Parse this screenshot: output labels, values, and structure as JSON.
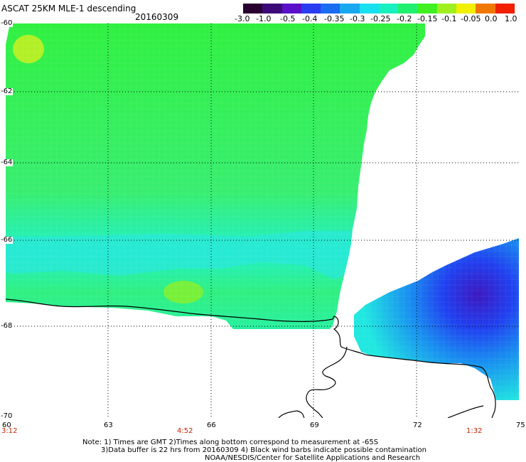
{
  "title": "ASCAT 25KM MLE-1 descending",
  "date": "20160309",
  "colorbar": {
    "labels": [
      "-3.0",
      "-1.0",
      "-0.5",
      "-0.4",
      "-0.35",
      "-0.3",
      "-0.25",
      "-0.2",
      "-0.15",
      "-0.1",
      "-0.05",
      "0.0",
      "1.0"
    ],
    "colors": [
      "#2a0030",
      "#3c0a78",
      "#5a10c8",
      "#2a3cf0",
      "#1a6cf0",
      "#18a8f0",
      "#18e0f0",
      "#18f0c0",
      "#20f070",
      "#40f020",
      "#a0f020",
      "#f0f000",
      "#f07800",
      "#f02000"
    ]
  },
  "lat_labels": [
    "-60",
    "-62",
    "-64",
    "-66",
    "-68",
    "-70"
  ],
  "lon_labels": [
    "60",
    "63",
    "66",
    "69",
    "72",
    "75"
  ],
  "time_labels": [
    "3:12",
    "4:52",
    "1:32"
  ],
  "notes": [
    "Note: 1) Times are GMT 2)Times along bottom correspond to measurement at -65S",
    "3)Data buffer is 22 hrs from 20160309 4) Black wind barbs indicate possible contamination",
    "NOAA/NESDIS/Center for Satellite Applications and Research"
  ]
}
